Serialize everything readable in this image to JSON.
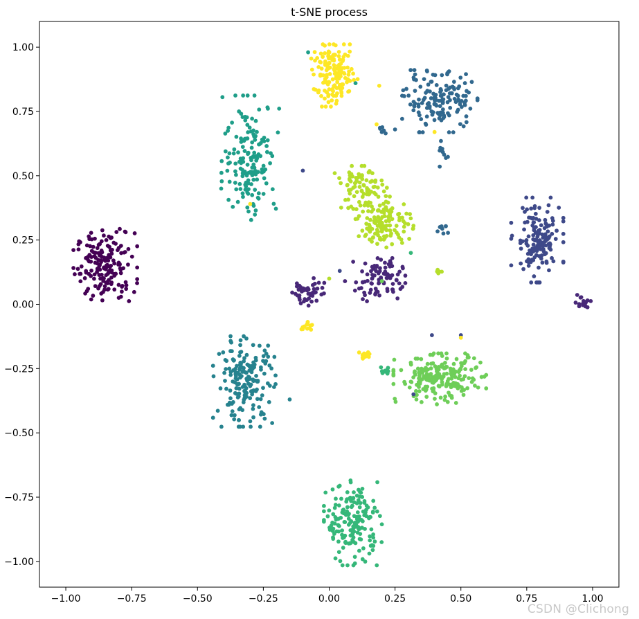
{
  "chart_data": {
    "type": "scatter",
    "title": "t-SNE process",
    "xlabel": "",
    "ylabel": "",
    "xlim": [
      -1.1,
      1.1
    ],
    "ylim": [
      -1.1,
      1.1
    ],
    "xticks": [
      -1.0,
      -0.75,
      -0.5,
      -0.25,
      0.0,
      0.25,
      0.5,
      0.75,
      1.0
    ],
    "xtick_labels": [
      "−1.00",
      "−0.75",
      "−0.50",
      "−0.25",
      "0.00",
      "0.25",
      "0.50",
      "0.75",
      "1.00"
    ],
    "yticks": [
      1.0,
      0.75,
      0.5,
      0.25,
      0.0,
      -0.25,
      -0.5,
      -0.75,
      -1.0
    ],
    "ytick_labels": [
      "1.00",
      "0.75",
      "0.50",
      "0.25",
      "0.00",
      "−0.25",
      "−0.50",
      "−0.75",
      "−1.00"
    ],
    "grid": false,
    "colormap": "viridis",
    "class_colors": [
      "#440154",
      "#482878",
      "#3e4989",
      "#31688e",
      "#26828e",
      "#1f9e89",
      "#35b779",
      "#6ece58",
      "#b5de2b",
      "#fde725"
    ],
    "clusters": [
      {
        "class": 0,
        "cx": -0.85,
        "cy": 0.15,
        "sx": 0.055,
        "sy": 0.065,
        "n": 180
      },
      {
        "class": 1,
        "cx": -0.08,
        "cy": 0.05,
        "sx": 0.03,
        "sy": 0.028,
        "n": 45
      },
      {
        "class": 1,
        "cx": 0.19,
        "cy": 0.1,
        "sx": 0.045,
        "sy": 0.04,
        "n": 90
      },
      {
        "class": 1,
        "cx": 0.96,
        "cy": 0.01,
        "sx": 0.015,
        "sy": 0.012,
        "n": 18
      },
      {
        "class": 2,
        "cx": 0.79,
        "cy": 0.25,
        "sx": 0.045,
        "sy": 0.075,
        "n": 150
      },
      {
        "class": 3,
        "cx": 0.42,
        "cy": 0.79,
        "sx": 0.065,
        "sy": 0.055,
        "n": 150
      },
      {
        "class": 3,
        "cx": 0.43,
        "cy": 0.58,
        "sx": 0.01,
        "sy": 0.025,
        "n": 10
      },
      {
        "class": 3,
        "cx": 0.43,
        "cy": 0.29,
        "sx": 0.01,
        "sy": 0.01,
        "n": 8
      },
      {
        "class": 3,
        "cx": 0.2,
        "cy": 0.67,
        "sx": 0.008,
        "sy": 0.01,
        "n": 6
      },
      {
        "class": 4,
        "cx": -0.32,
        "cy": -0.3,
        "sx": 0.055,
        "sy": 0.08,
        "n": 180
      },
      {
        "class": 5,
        "cx": -0.3,
        "cy": 0.57,
        "sx": 0.05,
        "sy": 0.11,
        "n": 160
      },
      {
        "class": 6,
        "cx": 0.09,
        "cy": -0.85,
        "sx": 0.05,
        "sy": 0.075,
        "n": 180
      },
      {
        "class": 6,
        "cx": 0.21,
        "cy": -0.26,
        "sx": 0.012,
        "sy": 0.008,
        "n": 10
      },
      {
        "class": 7,
        "cx": 0.42,
        "cy": -0.29,
        "sx": 0.08,
        "sy": 0.045,
        "n": 210
      },
      {
        "class": 8,
        "cx": 0.12,
        "cy": 0.45,
        "sx": 0.045,
        "sy": 0.04,
        "n": 80
      },
      {
        "class": 8,
        "cx": 0.21,
        "cy": 0.32,
        "sx": 0.05,
        "sy": 0.045,
        "n": 130
      },
      {
        "class": 8,
        "cx": 0.42,
        "cy": 0.13,
        "sx": 0.006,
        "sy": 0.006,
        "n": 5
      },
      {
        "class": 9,
        "cx": 0.02,
        "cy": 0.89,
        "sx": 0.04,
        "sy": 0.055,
        "n": 160
      },
      {
        "class": 9,
        "cx": -0.09,
        "cy": -0.08,
        "sx": 0.012,
        "sy": 0.012,
        "n": 14
      },
      {
        "class": 9,
        "cx": 0.14,
        "cy": -0.2,
        "sx": 0.012,
        "sy": 0.01,
        "n": 14
      }
    ],
    "outliers": [
      {
        "class": 5,
        "x": -0.08,
        "y": 0.98
      },
      {
        "class": 5,
        "x": 0.1,
        "y": 0.86
      },
      {
        "class": 9,
        "x": 0.19,
        "y": 0.85
      },
      {
        "class": 9,
        "x": 0.18,
        "y": 0.7
      },
      {
        "class": 9,
        "x": -0.3,
        "y": 0.39
      },
      {
        "class": 9,
        "x": 0.4,
        "y": 0.67
      },
      {
        "class": 2,
        "x": -0.1,
        "y": 0.52
      },
      {
        "class": 2,
        "x": 0.04,
        "y": 0.13
      },
      {
        "class": 2,
        "x": 0.39,
        "y": -0.12
      },
      {
        "class": 2,
        "x": 0.5,
        "y": -0.12
      },
      {
        "class": 2,
        "x": 0.32,
        "y": -0.35
      },
      {
        "class": 3,
        "x": 0.25,
        "y": 0.68
      },
      {
        "class": 1,
        "x": 0.06,
        "y": 0.09
      },
      {
        "class": 6,
        "x": 0.31,
        "y": 0.2
      },
      {
        "class": 7,
        "x": 0.2,
        "y": 0.09
      },
      {
        "class": 8,
        "x": 0.0,
        "y": 0.1
      },
      {
        "class": 9,
        "x": 0.5,
        "y": -0.13
      },
      {
        "class": 4,
        "x": -0.15,
        "y": -0.37
      }
    ]
  },
  "watermark": "CSDN @Clichong"
}
